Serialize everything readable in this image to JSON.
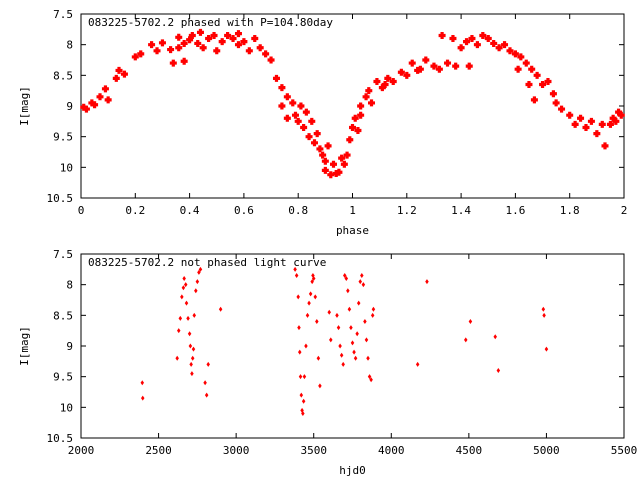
{
  "chart_data": [
    {
      "type": "scatter",
      "title": "083225-5702.2 phased with P=104.80day",
      "xlabel": "phase",
      "ylabel": "I[mag]",
      "xlim": [
        0,
        2
      ],
      "ylim": [
        10.5,
        7.5
      ],
      "y_inverted": true,
      "grid": false,
      "marker_color": "#ff0000",
      "xticks": [
        "0",
        "0.2",
        "0.4",
        "0.6",
        "0.8",
        "1",
        "1.2",
        "1.4",
        "1.6",
        "1.8",
        "2"
      ],
      "yticks": [
        "7.5",
        "8",
        "8.5",
        "9",
        "9.5",
        "10",
        "10.5"
      ],
      "series": [
        {
          "points": [
            [
              0.01,
              9.02
            ],
            [
              0.02,
              9.05
            ],
            [
              0.04,
              8.95
            ],
            [
              0.05,
              8.98
            ],
            [
              0.07,
              8.85
            ],
            [
              0.09,
              8.72
            ],
            [
              0.1,
              8.9
            ],
            [
              0.13,
              8.55
            ],
            [
              0.14,
              8.42
            ],
            [
              0.16,
              8.48
            ],
            [
              0.2,
              8.2
            ],
            [
              0.22,
              8.15
            ],
            [
              0.26,
              8.0
            ],
            [
              0.28,
              8.1
            ],
            [
              0.3,
              7.97
            ],
            [
              0.33,
              8.08
            ],
            [
              0.34,
              8.3
            ],
            [
              0.36,
              8.05
            ],
            [
              0.36,
              7.88
            ],
            [
              0.38,
              7.98
            ],
            [
              0.38,
              8.27
            ],
            [
              0.4,
              7.92
            ],
            [
              0.41,
              7.85
            ],
            [
              0.43,
              7.98
            ],
            [
              0.44,
              7.8
            ],
            [
              0.45,
              8.05
            ],
            [
              0.47,
              7.9
            ],
            [
              0.49,
              7.85
            ],
            [
              0.5,
              8.1
            ],
            [
              0.52,
              7.95
            ],
            [
              0.54,
              7.85
            ],
            [
              0.56,
              7.9
            ],
            [
              0.58,
              8.0
            ],
            [
              0.58,
              7.82
            ],
            [
              0.6,
              7.95
            ],
            [
              0.62,
              8.1
            ],
            [
              0.64,
              7.9
            ],
            [
              0.66,
              8.05
            ],
            [
              0.68,
              8.15
            ],
            [
              0.7,
              8.25
            ],
            [
              0.72,
              8.55
            ],
            [
              0.74,
              8.7
            ],
            [
              0.74,
              9.0
            ],
            [
              0.76,
              8.85
            ],
            [
              0.78,
              8.95
            ],
            [
              0.79,
              9.15
            ],
            [
              0.8,
              9.25
            ],
            [
              0.81,
              9.0
            ],
            [
              0.82,
              9.35
            ],
            [
              0.84,
              9.5
            ],
            [
              0.85,
              9.25
            ],
            [
              0.86,
              9.6
            ],
            [
              0.87,
              9.45
            ],
            [
              0.88,
              9.7
            ],
            [
              0.89,
              9.8
            ],
            [
              0.9,
              9.9
            ],
            [
              0.9,
              10.05
            ],
            [
              0.91,
              9.65
            ],
            [
              0.92,
              10.12
            ],
            [
              0.93,
              9.95
            ],
            [
              0.94,
              10.1
            ],
            [
              0.95,
              10.08
            ],
            [
              0.96,
              9.85
            ],
            [
              0.97,
              9.95
            ],
            [
              0.98,
              9.8
            ],
            [
              0.99,
              9.55
            ],
            [
              1.0,
              9.35
            ],
            [
              1.01,
              9.2
            ],
            [
              1.02,
              9.4
            ],
            [
              1.03,
              9.0
            ],
            [
              1.05,
              8.85
            ],
            [
              1.06,
              8.75
            ],
            [
              1.07,
              8.95
            ],
            [
              1.09,
              8.6
            ],
            [
              1.11,
              8.7
            ],
            [
              1.13,
              8.55
            ],
            [
              1.15,
              8.6
            ],
            [
              1.18,
              8.45
            ],
            [
              1.2,
              8.5
            ],
            [
              1.22,
              8.3
            ],
            [
              1.25,
              8.4
            ],
            [
              1.27,
              8.25
            ],
            [
              1.3,
              8.35
            ],
            [
              1.32,
              8.4
            ],
            [
              1.33,
              7.85
            ],
            [
              1.35,
              8.3
            ],
            [
              1.37,
              7.9
            ],
            [
              1.38,
              8.35
            ],
            [
              1.4,
              8.05
            ],
            [
              1.42,
              7.95
            ],
            [
              1.44,
              7.9
            ],
            [
              1.46,
              8.0
            ],
            [
              1.48,
              7.85
            ],
            [
              1.5,
              7.9
            ],
            [
              1.52,
              7.98
            ],
            [
              1.54,
              8.05
            ],
            [
              1.56,
              8.0
            ],
            [
              1.58,
              8.1
            ],
            [
              1.6,
              8.15
            ],
            [
              1.61,
              8.4
            ],
            [
              1.62,
              8.2
            ],
            [
              1.64,
              8.3
            ],
            [
              1.65,
              8.65
            ],
            [
              1.66,
              8.4
            ],
            [
              1.67,
              8.9
            ],
            [
              1.68,
              8.5
            ],
            [
              1.7,
              8.65
            ],
            [
              1.72,
              8.6
            ],
            [
              1.74,
              8.8
            ],
            [
              1.75,
              8.95
            ],
            [
              1.77,
              9.05
            ],
            [
              1.8,
              9.15
            ],
            [
              1.82,
              9.3
            ],
            [
              1.84,
              9.2
            ],
            [
              1.86,
              9.35
            ],
            [
              1.88,
              9.25
            ],
            [
              1.9,
              9.45
            ],
            [
              1.92,
              9.3
            ],
            [
              1.93,
              9.65
            ],
            [
              1.95,
              9.3
            ],
            [
              1.96,
              9.2
            ],
            [
              1.98,
              9.1
            ],
            [
              1.99,
              9.15
            ],
            [
              1.97,
              9.25
            ],
            [
              1.03,
              9.15
            ],
            [
              1.24,
              8.42
            ],
            [
              1.43,
              8.35
            ],
            [
              0.83,
              9.1
            ],
            [
              0.76,
              9.2
            ],
            [
              1.12,
              8.65
            ]
          ]
        }
      ]
    },
    {
      "type": "scatter",
      "title": "083225-5702.2 not phased light curve",
      "xlabel": "hjd0",
      "ylabel": "I[mag]",
      "xlim": [
        2000,
        5500
      ],
      "ylim": [
        10.5,
        7.5
      ],
      "y_inverted": true,
      "grid": false,
      "marker_color": "#ff0000",
      "xticks": [
        "2000",
        "2500",
        "3000",
        "3500",
        "4000",
        "4500",
        "5000",
        "5500"
      ],
      "yticks": [
        "7.5",
        "8",
        "8.5",
        "9",
        "9.5",
        "10",
        "10.5"
      ],
      "series": [
        {
          "points": [
            [
              2395,
              9.6
            ],
            [
              2398,
              9.85
            ],
            [
              2620,
              9.2
            ],
            [
              2630,
              8.75
            ],
            [
              2640,
              8.55
            ],
            [
              2650,
              8.2
            ],
            [
              2660,
              8.05
            ],
            [
              2665,
              7.9
            ],
            [
              2675,
              8.0
            ],
            [
              2680,
              8.3
            ],
            [
              2690,
              8.55
            ],
            [
              2700,
              8.8
            ],
            [
              2705,
              9.0
            ],
            [
              2710,
              9.3
            ],
            [
              2715,
              9.45
            ],
            [
              2720,
              9.2
            ],
            [
              2725,
              9.05
            ],
            [
              2730,
              8.5
            ],
            [
              2740,
              8.1
            ],
            [
              2750,
              7.95
            ],
            [
              2760,
              7.8
            ],
            [
              2770,
              7.75
            ],
            [
              2800,
              9.6
            ],
            [
              2810,
              9.8
            ],
            [
              2820,
              9.3
            ],
            [
              2900,
              8.4
            ],
            [
              3380,
              7.75
            ],
            [
              3390,
              7.85
            ],
            [
              3400,
              8.2
            ],
            [
              3405,
              8.7
            ],
            [
              3410,
              9.1
            ],
            [
              3415,
              9.5
            ],
            [
              3420,
              9.8
            ],
            [
              3425,
              10.05
            ],
            [
              3430,
              10.1
            ],
            [
              3435,
              9.9
            ],
            [
              3440,
              9.5
            ],
            [
              3450,
              9.0
            ],
            [
              3460,
              8.5
            ],
            [
              3470,
              8.3
            ],
            [
              3480,
              8.15
            ],
            [
              3490,
              7.95
            ],
            [
              3495,
              7.85
            ],
            [
              3500,
              7.9
            ],
            [
              3510,
              8.2
            ],
            [
              3520,
              8.6
            ],
            [
              3530,
              9.2
            ],
            [
              3540,
              9.65
            ],
            [
              3600,
              8.45
            ],
            [
              3610,
              8.9
            ],
            [
              3650,
              8.5
            ],
            [
              3660,
              8.7
            ],
            [
              3670,
              9.0
            ],
            [
              3680,
              9.15
            ],
            [
              3690,
              9.3
            ],
            [
              3700,
              7.85
            ],
            [
              3710,
              7.9
            ],
            [
              3720,
              8.1
            ],
            [
              3730,
              8.4
            ],
            [
              3740,
              8.7
            ],
            [
              3750,
              8.95
            ],
            [
              3760,
              9.1
            ],
            [
              3770,
              9.2
            ],
            [
              3780,
              8.8
            ],
            [
              3790,
              8.3
            ],
            [
              3800,
              7.95
            ],
            [
              3810,
              7.85
            ],
            [
              3820,
              8.0
            ],
            [
              3830,
              8.6
            ],
            [
              3840,
              8.9
            ],
            [
              3850,
              9.2
            ],
            [
              3860,
              9.5
            ],
            [
              3870,
              9.55
            ],
            [
              3880,
              8.5
            ],
            [
              3885,
              8.4
            ],
            [
              4170,
              9.3
            ],
            [
              4230,
              7.95
            ],
            [
              4480,
              8.9
            ],
            [
              4510,
              8.6
            ],
            [
              4670,
              8.85
            ],
            [
              4690,
              9.4
            ],
            [
              4980,
              8.4
            ],
            [
              4985,
              8.5
            ],
            [
              5000,
              9.05
            ]
          ]
        }
      ]
    }
  ]
}
